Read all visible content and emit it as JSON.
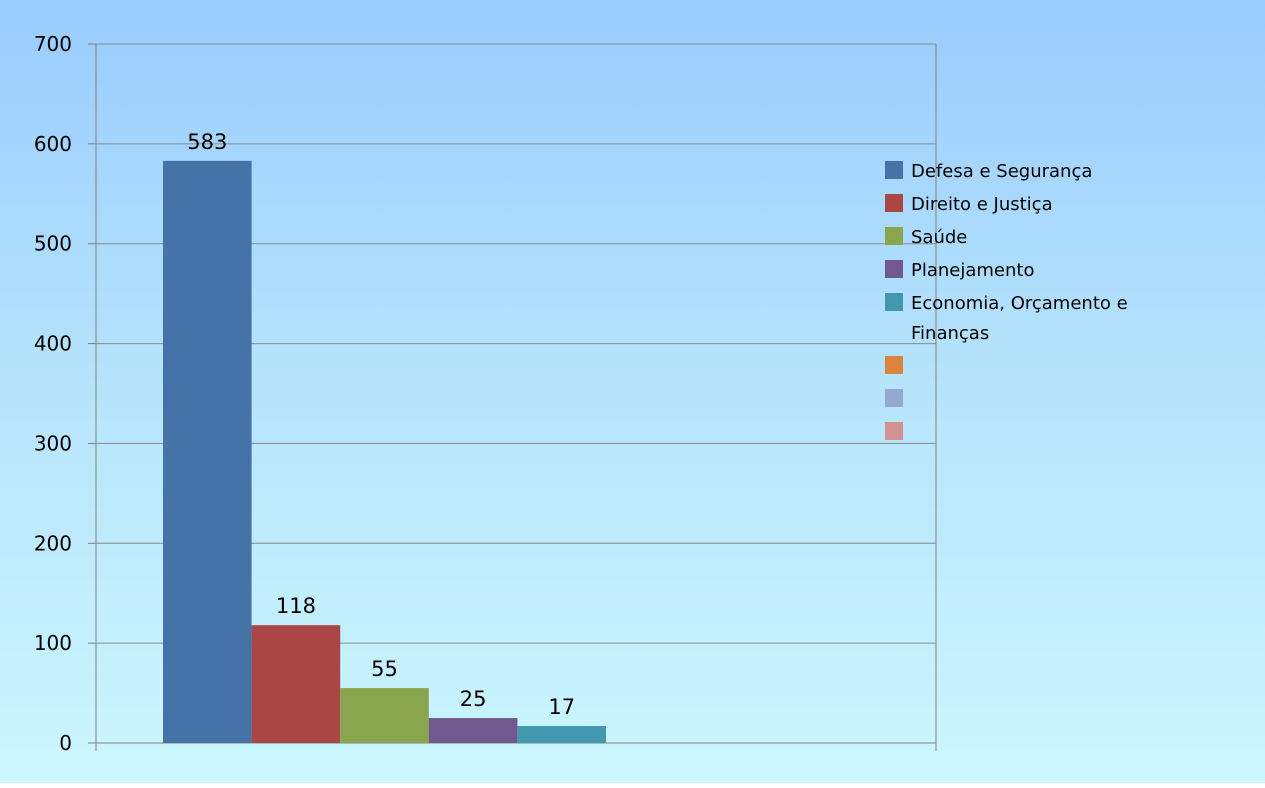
{
  "chart_data": {
    "type": "bar",
    "title": "",
    "xlabel": "",
    "ylabel": "",
    "ylim": [
      0,
      700
    ],
    "yticks": [
      0,
      100,
      200,
      300,
      400,
      500,
      600,
      700
    ],
    "grid": true,
    "legend_position": "right",
    "series": [
      {
        "name": "Defesa e Segurança",
        "value": 583,
        "label": "583",
        "color": "#4572a7"
      },
      {
        "name": "Direito e Justiça",
        "value": 118,
        "label": "118",
        "color": "#aa4643"
      },
      {
        "name": "Saúde",
        "value": 55,
        "label": "55",
        "color": "#89a54e"
      },
      {
        "name": "Planejamento",
        "value": 25,
        "label": "25",
        "color": "#71588f"
      },
      {
        "name": "Economia, Orçamento e Finanças",
        "value": 17,
        "label": "17",
        "color": "#4198af"
      }
    ],
    "legend_extra_swatch_colors": [
      "#db843d",
      "#93a9cf",
      "#d19392"
    ],
    "background_gradient": [
      "#99ccff",
      "#ccf7fe"
    ]
  }
}
